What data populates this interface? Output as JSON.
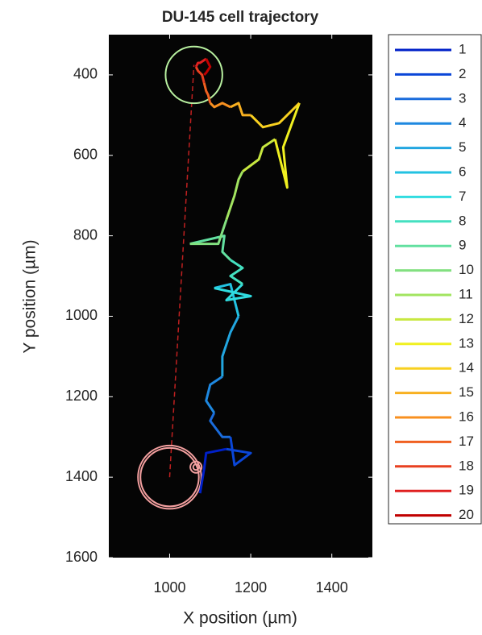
{
  "chart_data": {
    "type": "line",
    "title": "DU-145 cell trajectory",
    "xlabel": "X position (µm)",
    "ylabel": "Y position (µm)",
    "xlim": [
      850,
      1500
    ],
    "xticks": [
      1000,
      1200,
      1400
    ],
    "ylim": [
      300,
      1600
    ],
    "yticks": [
      400,
      600,
      800,
      1000,
      1200,
      1400,
      1600
    ],
    "y_reversed": true,
    "background": "#050505",
    "series": [
      {
        "name": "1",
        "color": "#0020c8",
        "x": [
          1075,
          1085,
          1090,
          1140
        ],
        "y": [
          1440,
          1380,
          1340,
          1330
        ]
      },
      {
        "name": "2",
        "color": "#0a46d8",
        "x": [
          1140,
          1200,
          1160,
          1150
        ],
        "y": [
          1330,
          1340,
          1370,
          1300
        ]
      },
      {
        "name": "3",
        "color": "#1a6cdc",
        "x": [
          1150,
          1130,
          1100,
          1110
        ],
        "y": [
          1300,
          1300,
          1260,
          1240
        ]
      },
      {
        "name": "4",
        "color": "#1e88e0",
        "x": [
          1110,
          1090,
          1100,
          1130
        ],
        "y": [
          1240,
          1210,
          1170,
          1150
        ]
      },
      {
        "name": "5",
        "color": "#22a6e0",
        "x": [
          1130,
          1130,
          1150,
          1170
        ],
        "y": [
          1150,
          1100,
          1040,
          1000
        ]
      },
      {
        "name": "6",
        "color": "#22c2e2",
        "x": [
          1170,
          1160,
          1150,
          1110
        ],
        "y": [
          1000,
          960,
          920,
          930
        ]
      },
      {
        "name": "7",
        "color": "#30dce0",
        "x": [
          1110,
          1200,
          1140,
          1180
        ],
        "y": [
          930,
          950,
          960,
          920
        ]
      },
      {
        "name": "8",
        "color": "#44e0c0",
        "x": [
          1180,
          1150,
          1180,
          1150
        ],
        "y": [
          920,
          900,
          880,
          860
        ]
      },
      {
        "name": "9",
        "color": "#62e0a0",
        "x": [
          1150,
          1130,
          1135,
          1050
        ],
        "y": [
          860,
          840,
          800,
          820
        ]
      },
      {
        "name": "10",
        "color": "#82e080",
        "x": [
          1050,
          1120,
          1130,
          1140
        ],
        "y": [
          820,
          820,
          790,
          760
        ]
      },
      {
        "name": "11",
        "color": "#a2e460",
        "x": [
          1140,
          1160,
          1170,
          1180
        ],
        "y": [
          760,
          700,
          660,
          640
        ]
      },
      {
        "name": "12",
        "color": "#c8e840",
        "x": [
          1180,
          1220,
          1230,
          1260
        ],
        "y": [
          640,
          610,
          580,
          560
        ]
      },
      {
        "name": "13",
        "color": "#f0f020",
        "x": [
          1260,
          1290,
          1280,
          1320
        ],
        "y": [
          560,
          680,
          580,
          470
        ]
      },
      {
        "name": "14",
        "color": "#f8d020",
        "x": [
          1320,
          1270,
          1230,
          1200
        ],
        "y": [
          470,
          520,
          530,
          500
        ]
      },
      {
        "name": "15",
        "color": "#f8b020",
        "x": [
          1200,
          1180,
          1170,
          1150
        ],
        "y": [
          500,
          500,
          470,
          480
        ]
      },
      {
        "name": "16",
        "color": "#f89020",
        "x": [
          1150,
          1130,
          1110,
          1100
        ],
        "y": [
          480,
          470,
          480,
          470
        ]
      },
      {
        "name": "17",
        "color": "#f06020",
        "x": [
          1100,
          1095,
          1090,
          1085
        ],
        "y": [
          470,
          450,
          440,
          420
        ]
      },
      {
        "name": "18",
        "color": "#e84020",
        "x": [
          1085,
          1080,
          1070,
          1065
        ],
        "y": [
          420,
          400,
          390,
          380
        ]
      },
      {
        "name": "19",
        "color": "#e02020",
        "x": [
          1065,
          1070,
          1075,
          1090
        ],
        "y": [
          380,
          370,
          370,
          360
        ]
      },
      {
        "name": "20",
        "color": "#c00000",
        "x": [
          1090,
          1100,
          1090,
          1085
        ],
        "y": [
          360,
          380,
          395,
          400
        ]
      }
    ],
    "reference_line": {
      "color": "#c02020",
      "x": [
        1000,
        1060
      ],
      "y": [
        1400,
        375
      ]
    },
    "circles": [
      {
        "color": "#b8f0a0",
        "x": 1060,
        "y": 400,
        "r": 70
      },
      {
        "color": "#f4a0a0",
        "x": 1000,
        "y": 1400,
        "r": 78
      },
      {
        "color": "#f4a0a0",
        "x": 1000,
        "y": 1400,
        "r": 72
      },
      {
        "color": "#f4a0a0",
        "x": 1065,
        "y": 1375,
        "r": 14
      },
      {
        "color": "#f4a0a0",
        "x": 1065,
        "y": 1375,
        "r": 7
      }
    ]
  }
}
